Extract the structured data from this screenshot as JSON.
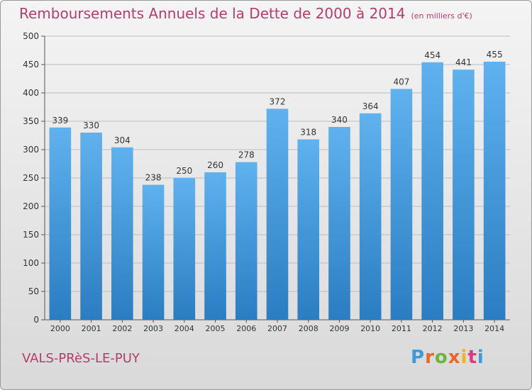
{
  "header": {
    "title": "Remboursements Annuels de la Dette de 2000 à 2014",
    "unit": "(en milliers d'€)"
  },
  "footer": {
    "city": "VALS-PRèS-LE-PUY",
    "brand": "Proxiti"
  },
  "colors": {
    "title": "#b83b6e",
    "bar_top": "#5fb2ee",
    "bar_bottom": "#2a7dc1",
    "grid": "#bdbdbd",
    "brand_letters": [
      "#3f9ad8",
      "#e8682a",
      "#6cb33f",
      "#e8682a",
      "#f1b318",
      "#d93b7e",
      "#3f9ad8"
    ]
  },
  "chart_data": {
    "type": "bar",
    "title": "Remboursements Annuels de la Dette de 2000 à 2014",
    "subtitle": "(en milliers d'€)",
    "xlabel": "",
    "ylabel": "",
    "categories": [
      "2000",
      "2001",
      "2002",
      "2003",
      "2004",
      "2005",
      "2006",
      "2007",
      "2008",
      "2009",
      "2010",
      "2011",
      "2012",
      "2013",
      "2014"
    ],
    "values": [
      339,
      330,
      304,
      238,
      250,
      260,
      278,
      372,
      318,
      340,
      364,
      407,
      454,
      441,
      455
    ],
    "ylim": [
      0,
      500
    ],
    "yticks": [
      0,
      50,
      100,
      150,
      200,
      250,
      300,
      350,
      400,
      450,
      500
    ],
    "grid": true,
    "data_labels": true
  }
}
